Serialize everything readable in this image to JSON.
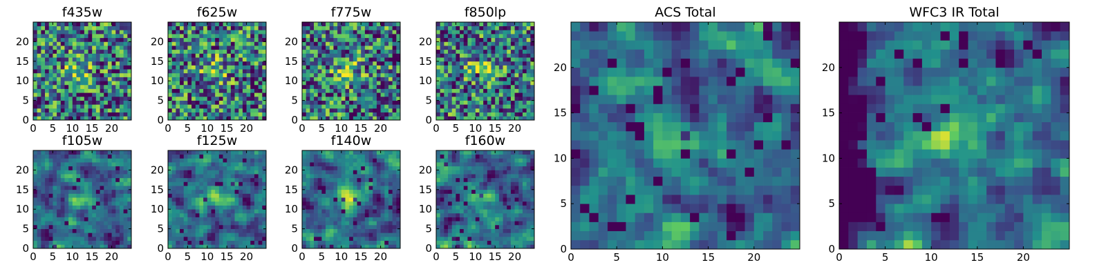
{
  "chart_data": [
    {
      "type": "heatmap",
      "title": "f435w",
      "grid_size": 25,
      "colormap": "viridis",
      "xticks": [
        0,
        5,
        10,
        15,
        20
      ],
      "yticks": [
        0,
        5,
        10,
        15,
        20
      ],
      "xlim": [
        0,
        25
      ],
      "ylim": [
        0,
        25
      ]
    },
    {
      "type": "heatmap",
      "title": "f625w",
      "grid_size": 25,
      "colormap": "viridis",
      "xticks": [
        0,
        5,
        10,
        15,
        20
      ],
      "yticks": [
        0,
        5,
        10,
        15,
        20
      ],
      "xlim": [
        0,
        25
      ],
      "ylim": [
        0,
        25
      ]
    },
    {
      "type": "heatmap",
      "title": "f775w",
      "grid_size": 25,
      "colormap": "viridis",
      "xticks": [
        0,
        5,
        10,
        15,
        20
      ],
      "yticks": [
        0,
        5,
        10,
        15,
        20
      ],
      "xlim": [
        0,
        25
      ],
      "ylim": [
        0,
        25
      ]
    },
    {
      "type": "heatmap",
      "title": "f850lp",
      "grid_size": 25,
      "colormap": "viridis",
      "xticks": [
        0,
        5,
        10,
        15,
        20
      ],
      "yticks": [
        0,
        5,
        10,
        15,
        20
      ],
      "xlim": [
        0,
        25
      ],
      "ylim": [
        0,
        25
      ]
    },
    {
      "type": "heatmap",
      "title": "f105w",
      "grid_size": 25,
      "colormap": "viridis",
      "xticks": [
        0,
        5,
        10,
        15,
        20
      ],
      "yticks": [
        0,
        5,
        10,
        15,
        20
      ],
      "xlim": [
        0,
        25
      ],
      "ylim": [
        0,
        25
      ]
    },
    {
      "type": "heatmap",
      "title": "f125w",
      "grid_size": 25,
      "colormap": "viridis",
      "xticks": [
        0,
        5,
        10,
        15,
        20
      ],
      "yticks": [
        0,
        5,
        10,
        15,
        20
      ],
      "xlim": [
        0,
        25
      ],
      "ylim": [
        0,
        25
      ]
    },
    {
      "type": "heatmap",
      "title": "f140w",
      "grid_size": 25,
      "colormap": "viridis",
      "xticks": [
        0,
        5,
        10,
        15,
        20
      ],
      "yticks": [
        0,
        5,
        10,
        15,
        20
      ],
      "xlim": [
        0,
        25
      ],
      "ylim": [
        0,
        25
      ]
    },
    {
      "type": "heatmap",
      "title": "f160w",
      "grid_size": 25,
      "colormap": "viridis",
      "xticks": [
        0,
        5,
        10,
        15,
        20
      ],
      "yticks": [
        0,
        5,
        10,
        15,
        20
      ],
      "xlim": [
        0,
        25
      ],
      "ylim": [
        0,
        25
      ]
    },
    {
      "type": "heatmap",
      "title": "ACS Total",
      "grid_size": 25,
      "colormap": "viridis",
      "xticks": [
        0,
        5,
        10,
        15,
        20
      ],
      "yticks": [
        0,
        5,
        10,
        15,
        20
      ],
      "xlim": [
        0,
        25
      ],
      "ylim": [
        0,
        25
      ]
    },
    {
      "type": "heatmap",
      "title": "WFC3 IR Total",
      "grid_size": 25,
      "colormap": "viridis",
      "xticks": [
        0,
        5,
        10,
        15,
        20
      ],
      "yticks": [
        0,
        5,
        10,
        15,
        20
      ],
      "xlim": [
        0,
        25
      ],
      "ylim": [
        0,
        25
      ]
    }
  ],
  "colormap_stops": [
    "#440154",
    "#3b528b",
    "#21918c",
    "#5ec962",
    "#fde725"
  ]
}
